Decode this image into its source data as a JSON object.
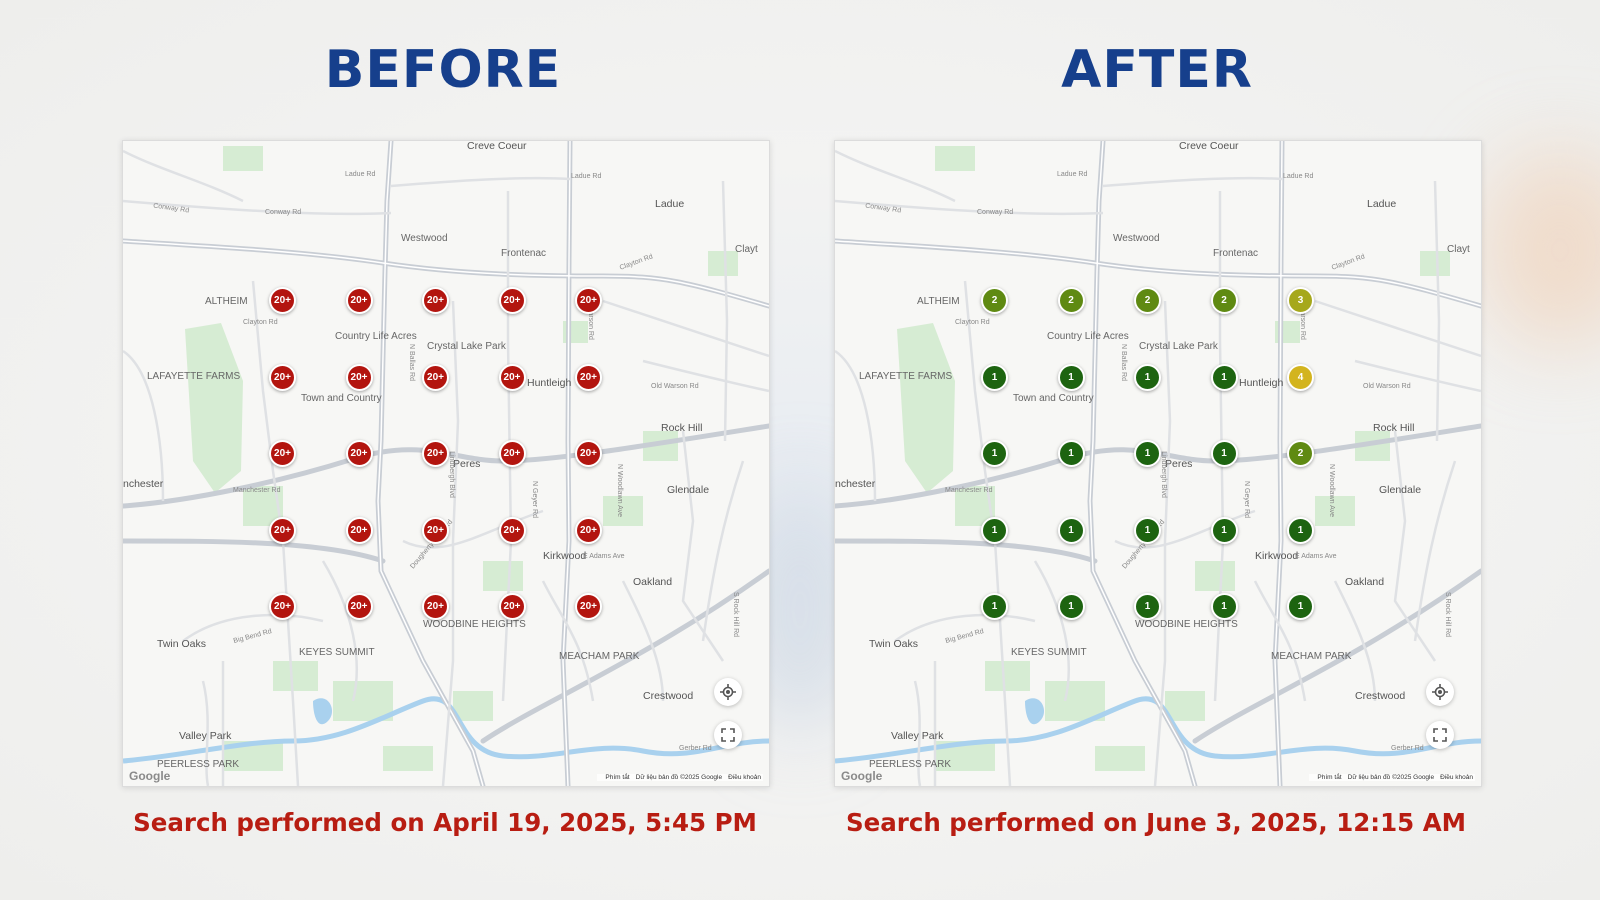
{
  "panels": [
    {
      "title": "BEFORE",
      "caption": "Search performed on April 19, 2025, 5:45 PM",
      "pins": [
        [
          "20+",
          "20+",
          "20+",
          "20+",
          "20+"
        ],
        [
          "20+",
          "20+",
          "20+",
          "20+",
          "20+"
        ],
        [
          "20+",
          "20+",
          "20+",
          "20+",
          "20+"
        ],
        [
          "20+",
          "20+",
          "20+",
          "20+",
          "20+"
        ],
        [
          "20+",
          "20+",
          "20+",
          "20+",
          "20+"
        ]
      ],
      "pin_colors": [
        [
          "#b3150f",
          "#b3150f",
          "#b3150f",
          "#b3150f",
          "#b3150f"
        ],
        [
          "#b3150f",
          "#b3150f",
          "#b3150f",
          "#b3150f",
          "#b3150f"
        ],
        [
          "#b3150f",
          "#b3150f",
          "#b3150f",
          "#b3150f",
          "#b3150f"
        ],
        [
          "#b3150f",
          "#b3150f",
          "#b3150f",
          "#b3150f",
          "#b3150f"
        ],
        [
          "#b3150f",
          "#b3150f",
          "#b3150f",
          "#b3150f",
          "#b3150f"
        ]
      ]
    },
    {
      "title": "AFTER",
      "caption": "Search performed on June 3, 2025, 12:15 AM",
      "pins": [
        [
          "2",
          "2",
          "2",
          "2",
          "3"
        ],
        [
          "1",
          "1",
          "1",
          "1",
          "4"
        ],
        [
          "1",
          "1",
          "1",
          "1",
          "2"
        ],
        [
          "1",
          "1",
          "1",
          "1",
          "1"
        ],
        [
          "1",
          "1",
          "1",
          "1",
          "1"
        ]
      ],
      "pin_colors": [
        [
          "#5f8a12",
          "#5f8a12",
          "#5f8a12",
          "#5f8a12",
          "#a6a81c"
        ],
        [
          "#1d6410",
          "#1d6410",
          "#1d6410",
          "#1d6410",
          "#d3b41e"
        ],
        [
          "#1d6410",
          "#1d6410",
          "#1d6410",
          "#1d6410",
          "#5f8a12"
        ],
        [
          "#1d6410",
          "#1d6410",
          "#1d6410",
          "#1d6410",
          "#1d6410"
        ],
        [
          "#1d6410",
          "#1d6410",
          "#1d6410",
          "#1d6410",
          "#1d6410"
        ]
      ]
    }
  ],
  "map": {
    "places": {
      "creve_coeur": "Creve Coeur",
      "ladue": "Ladue",
      "westwood": "Westwood",
      "frontenac": "Frontenac",
      "altheim": "ALTHEIM",
      "country_life_acres": "Country Life Acres",
      "crystal_lake_park": "Crystal Lake Park",
      "lafayette_farms": "LAFAYETTE FARMS",
      "town_and_country": "Town and Country",
      "huntleigh": "Huntleigh",
      "rock_hill": "Rock Hill",
      "glendale": "Glendale",
      "kirkwood": "Kirkwood",
      "oakland": "Oakland",
      "des_peres": "Peres",
      "manchester": "nchester",
      "twin_oaks": "Twin Oaks",
      "keyes_summit": "KEYES SUMMIT",
      "woodbine_heights": "WOODBINE HEIGHTS",
      "meacham_park": "MEACHAM PARK",
      "crestwood": "Crestwood",
      "valley_park": "Valley Park",
      "peerless_park": "PEERLESS PARK",
      "clayton": "Clayt"
    },
    "roads": {
      "ladue_rd": "Ladue Rd",
      "conway_rd": "Conway Rd",
      "clayton_rd": "Clayton Rd",
      "warson_rd": "Warson Rd",
      "old_warson_rd": "Old Warson Rd",
      "ballas_rd": "N Ballas Rd",
      "lindbergh": "Lindbergh Blvd",
      "geyer_rd": "N Geyer Rd",
      "woodlawn": "N Woodlawn Ave",
      "manchester_rd": "Manchester Rd",
      "big_bend": "Big Bend Rd",
      "dougherty": "Dougherty Ferry Rd",
      "adams": "E Adams Ave",
      "rock_hill_rd": "S Rock Hill Rd",
      "gerber": "Gerber Rd"
    },
    "attribution": {
      "shortcuts": "Phím tắt",
      "data": "Dữ liệu bản đồ ©2025 Google",
      "terms": "Điều khoản"
    },
    "logo": "Google",
    "controls": {
      "locate_icon": "crosshair-locate-icon",
      "fullscreen_icon": "fullscreen-expand-icon"
    }
  }
}
